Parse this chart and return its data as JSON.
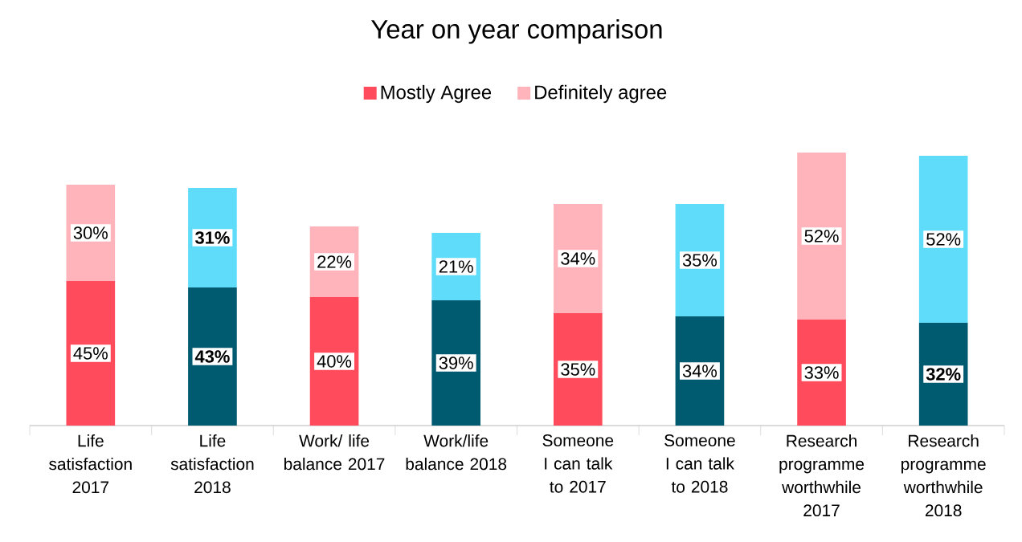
{
  "chart_data": {
    "type": "bar",
    "stacked": true,
    "title": "Year on year comparison",
    "categories": [
      "Life satisfaction 2017",
      "Life satisfaction 2018",
      "Work/ life balance 2017",
      "Work/life balance 2018",
      "Someone I can talk to 2017",
      "Someone I can talk to 2018",
      "Research programme worthwhile 2017",
      "Research programme worthwhile 2018"
    ],
    "series": [
      {
        "name": "Mostly Agree",
        "color": "#ff4b5c",
        "colors": [
          "#ff4b5c",
          "#005a70",
          "#ff4b5c",
          "#005a70",
          "#ff4b5c",
          "#005a70",
          "#ff4b5c",
          "#005a70"
        ],
        "values": [
          45,
          43,
          40,
          39,
          35,
          34,
          33,
          32
        ],
        "value_labels": [
          "45%",
          "**43%**",
          "40%",
          "39%",
          "35%",
          "34%",
          "33%",
          "**32%**"
        ]
      },
      {
        "name": "Definitely agree",
        "color": "#ffb3bb",
        "colors": [
          "#ffb3bb",
          "#5edcfa",
          "#ffb3bb",
          "#5edcfa",
          "#ffb3bb",
          "#5edcfa",
          "#ffb3bb",
          "#5edcfa"
        ],
        "values": [
          30,
          31,
          22,
          21,
          34,
          35,
          52,
          52
        ],
        "value_labels": [
          "30%",
          "**31%**",
          "22%",
          "21%",
          "34%",
          "35%",
          "52%",
          "52%"
        ]
      }
    ],
    "tick_labels": "x",
    "legend": "top"
  }
}
